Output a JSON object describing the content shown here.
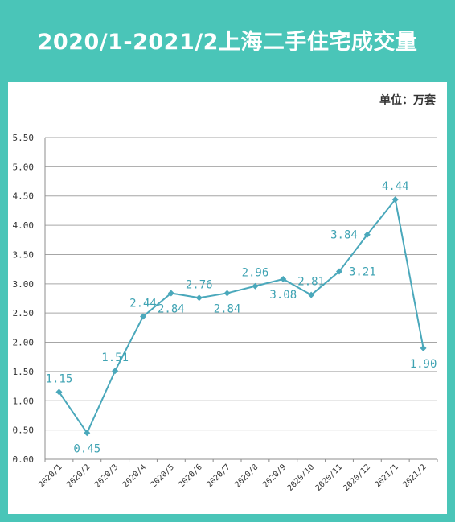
{
  "header": {
    "title": "2020/1-2021/2上海二手住宅成交量"
  },
  "unit_label": "单位：万套",
  "colors": {
    "background": "#4ac5b8",
    "series": "#4aa8bb",
    "label": "#3fa3b3"
  },
  "chart_data": {
    "type": "line",
    "title": "2020/1-2021/2上海二手住宅成交量",
    "xlabel": "",
    "ylabel": "单位：万套",
    "ylim": [
      0,
      5.5
    ],
    "yticks": [
      "0.00",
      "0.50",
      "1.00",
      "1.50",
      "2.00",
      "2.50",
      "3.00",
      "3.50",
      "4.00",
      "4.50",
      "5.00",
      "5.50"
    ],
    "grid": true,
    "categories": [
      "2020/1",
      "2020/2",
      "2020/3",
      "2020/4",
      "2020/5",
      "2020/6",
      "2020/7",
      "2020/8",
      "2020/9",
      "2020/10",
      "2020/11",
      "2020/12",
      "2021/1",
      "2021/2"
    ],
    "series": [
      {
        "values": [
          1.15,
          0.45,
          1.51,
          2.44,
          2.84,
          2.76,
          2.84,
          2.96,
          3.08,
          2.81,
          3.21,
          3.84,
          4.44,
          1.9
        ],
        "labels": [
          "1.15",
          "0.45",
          "1.51",
          "2.44",
          "2.84",
          "2.76",
          "2.84",
          "2.96",
          "3.08",
          "2.81",
          "3.21",
          "3.84",
          "4.44",
          "1.90"
        ],
        "label_positions": [
          "above",
          "below",
          "above",
          "above",
          "below",
          "above",
          "below",
          "above",
          "below",
          "above",
          "right",
          "left",
          "above",
          "below"
        ]
      }
    ]
  }
}
